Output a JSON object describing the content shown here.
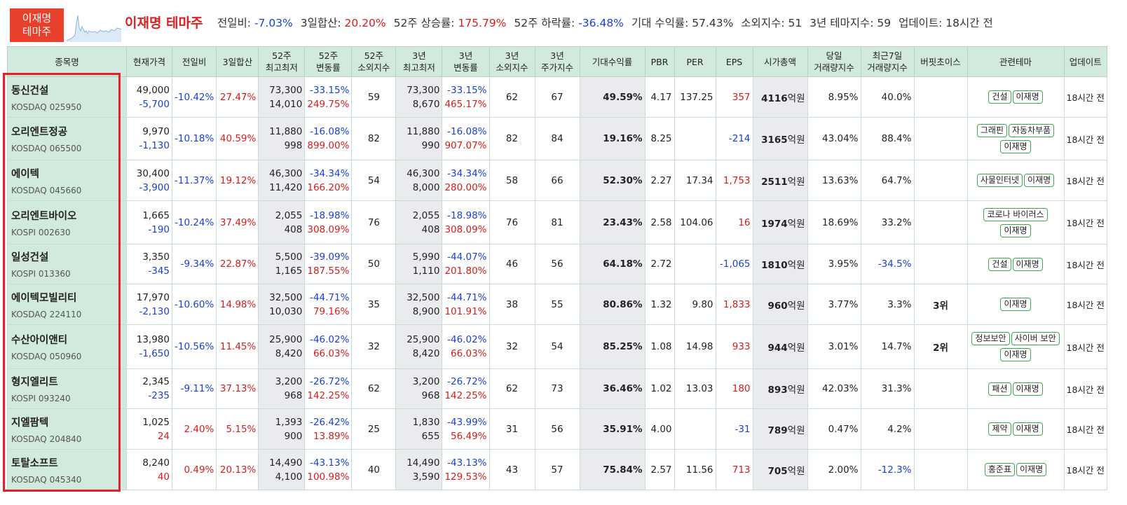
{
  "header": {
    "badge_line1": "이재명",
    "badge_line2": "테마주",
    "theme_name": "이재명 테마주",
    "stats": {
      "prev_day_label": "전일비:",
      "prev_day_value": "-7.03%",
      "sum3_label": "3일합산:",
      "sum3_value": "20.20%",
      "w52_up_label": "52주 상승률:",
      "w52_up_value": "175.79%",
      "w52_down_label": "52주 하락률:",
      "w52_down_value": "-36.48%",
      "expected_label": "기대 수익률:",
      "expected_value": "57.43%",
      "neglect_label": "소외지수:",
      "neglect_value": "51",
      "theme3_label": "3년 테마지수:",
      "theme3_value": "59",
      "update_label": "업데이트:",
      "update_value": "18시간 전"
    }
  },
  "columns": {
    "name": "종목명",
    "price": "현재가격",
    "prev": "전일비",
    "sum3": "3일합산",
    "w52_hl_1": "52주",
    "w52_hl_2": "최고최저",
    "w52_chg_1": "52주",
    "w52_chg_2": "변동률",
    "w52_neg_1": "52주",
    "w52_neg_2": "소외지수",
    "y3_hl_1": "3년",
    "y3_hl_2": "최고최저",
    "y3_chg_1": "3년",
    "y3_chg_2": "변동률",
    "y3_neg_1": "3년",
    "y3_neg_2": "소외지수",
    "y3_idx_1": "3년",
    "y3_idx_2": "주가지수",
    "expected": "기대수익률",
    "pbr": "PBR",
    "per": "PER",
    "eps": "EPS",
    "mcap": "시가총액",
    "vol_day_1": "당일",
    "vol_day_2": "거래량지수",
    "vol_7_1": "최근7일",
    "vol_7_2": "거래량지수",
    "buffett": "버핏초이스",
    "themes": "관련테마",
    "update": "업데이트"
  },
  "rows": [
    {
      "name": "동신건설",
      "code": "KOSDAQ 025950",
      "price": "49,000",
      "change": "-5,700",
      "prev": "-10.42%",
      "sum3": "27.47%",
      "w52_high": "73,300",
      "w52_low": "14,010",
      "w52_chg_down": "-33.15%",
      "w52_chg_up": "249.75%",
      "w52_neg": "59",
      "y3_high": "73,300",
      "y3_low": "8,670",
      "y3_chg_down": "-33.15%",
      "y3_chg_up": "465.17%",
      "y3_neg": "62",
      "y3_idx": "67",
      "expected": "49.59%",
      "pbr": "4.17",
      "per": "137.25",
      "eps": "357",
      "mcap_num": "4116",
      "mcap_unit": "억원",
      "vol_day": "8.95%",
      "vol_7": "40.0%",
      "buffett": "",
      "themes": [
        "건설",
        "이재명"
      ],
      "update": "18시간 전"
    },
    {
      "name": "오리엔트정공",
      "code": "KOSDAQ 065500",
      "price": "9,970",
      "change": "-1,130",
      "prev": "-10.18%",
      "sum3": "40.59%",
      "w52_high": "11,880",
      "w52_low": "998",
      "w52_chg_down": "-16.08%",
      "w52_chg_up": "899.00%",
      "w52_neg": "82",
      "y3_high": "11,880",
      "y3_low": "990",
      "y3_chg_down": "-16.08%",
      "y3_chg_up": "907.07%",
      "y3_neg": "82",
      "y3_idx": "84",
      "expected": "19.16%",
      "pbr": "8.25",
      "per": "",
      "eps": "-214",
      "mcap_num": "3165",
      "mcap_unit": "억원",
      "vol_day": "43.04%",
      "vol_7": "88.4%",
      "buffett": "",
      "themes": [
        "그래핀",
        "자동차부품",
        "이재명"
      ],
      "update": "18시간 전"
    },
    {
      "name": "에이텍",
      "code": "KOSDAQ 045660",
      "price": "30,400",
      "change": "-3,900",
      "prev": "-11.37%",
      "sum3": "19.12%",
      "w52_high": "46,300",
      "w52_low": "11,420",
      "w52_chg_down": "-34.34%",
      "w52_chg_up": "166.20%",
      "w52_neg": "54",
      "y3_high": "46,300",
      "y3_low": "8,000",
      "y3_chg_down": "-34.34%",
      "y3_chg_up": "280.00%",
      "y3_neg": "58",
      "y3_idx": "66",
      "expected": "52.30%",
      "pbr": "2.27",
      "per": "17.34",
      "eps": "1,753",
      "mcap_num": "2511",
      "mcap_unit": "억원",
      "vol_day": "13.63%",
      "vol_7": "64.7%",
      "buffett": "",
      "themes": [
        "사물인터넷",
        "이재명"
      ],
      "update": "18시간 전"
    },
    {
      "name": "오리엔트바이오",
      "code": "KOSPI 002630",
      "price": "1,665",
      "change": "-190",
      "prev": "-10.24%",
      "sum3": "37.49%",
      "w52_high": "2,055",
      "w52_low": "408",
      "w52_chg_down": "-18.98%",
      "w52_chg_up": "308.09%",
      "w52_neg": "76",
      "y3_high": "2,055",
      "y3_low": "408",
      "y3_chg_down": "-18.98%",
      "y3_chg_up": "308.09%",
      "y3_neg": "76",
      "y3_idx": "81",
      "expected": "23.43%",
      "pbr": "2.58",
      "per": "104.06",
      "eps": "16",
      "mcap_num": "1974",
      "mcap_unit": "억원",
      "vol_day": "18.69%",
      "vol_7": "33.2%",
      "buffett": "",
      "themes": [
        "코로나 바이러스",
        "이재명"
      ],
      "update": "18시간 전"
    },
    {
      "name": "일성건설",
      "code": "KOSPI 013360",
      "price": "3,350",
      "change": "-345",
      "prev": "-9.34%",
      "sum3": "22.87%",
      "w52_high": "5,500",
      "w52_low": "1,165",
      "w52_chg_down": "-39.09%",
      "w52_chg_up": "187.55%",
      "w52_neg": "50",
      "y3_high": "5,990",
      "y3_low": "1,110",
      "y3_chg_down": "-44.07%",
      "y3_chg_up": "201.80%",
      "y3_neg": "46",
      "y3_idx": "56",
      "expected": "64.18%",
      "pbr": "2.72",
      "per": "",
      "eps": "-1,065",
      "mcap_num": "1810",
      "mcap_unit": "억원",
      "vol_day": "3.95%",
      "vol_7": "-34.5%",
      "buffett": "",
      "themes": [
        "건설",
        "이재명"
      ],
      "update": "18시간 전"
    },
    {
      "name": "에이텍모빌리티",
      "code": "KOSDAQ 224110",
      "price": "17,970",
      "change": "-2,130",
      "prev": "-10.60%",
      "sum3": "14.98%",
      "w52_high": "32,500",
      "w52_low": "10,030",
      "w52_chg_down": "-44.71%",
      "w52_chg_up": "79.16%",
      "w52_neg": "35",
      "y3_high": "32,500",
      "y3_low": "8,900",
      "y3_chg_down": "-44.71%",
      "y3_chg_up": "101.91%",
      "y3_neg": "38",
      "y3_idx": "55",
      "expected": "80.86%",
      "pbr": "1.32",
      "per": "9.80",
      "eps": "1,833",
      "mcap_num": "960",
      "mcap_unit": "억원",
      "vol_day": "3.77%",
      "vol_7": "3.3%",
      "buffett": "3위",
      "themes": [
        "이재명"
      ],
      "update": "18시간 전"
    },
    {
      "name": "수산아이앤티",
      "code": "KOSDAQ 050960",
      "price": "13,980",
      "change": "-1,650",
      "prev": "-10.56%",
      "sum3": "11.45%",
      "w52_high": "25,900",
      "w52_low": "8,420",
      "w52_chg_down": "-46.02%",
      "w52_chg_up": "66.03%",
      "w52_neg": "32",
      "y3_high": "25,900",
      "y3_low": "8,420",
      "y3_chg_down": "-46.02%",
      "y3_chg_up": "66.03%",
      "y3_neg": "32",
      "y3_idx": "54",
      "expected": "85.25%",
      "pbr": "1.08",
      "per": "14.98",
      "eps": "933",
      "mcap_num": "944",
      "mcap_unit": "억원",
      "vol_day": "3.01%",
      "vol_7": "14.7%",
      "buffett": "2위",
      "themes": [
        "정보보안",
        "사이버 보안",
        "이재명"
      ],
      "update": "18시간 전"
    },
    {
      "name": "형지엘리트",
      "code": "KOSPI 093240",
      "price": "2,345",
      "change": "-235",
      "prev": "-9.11%",
      "sum3": "37.13%",
      "w52_high": "3,200",
      "w52_low": "968",
      "w52_chg_down": "-26.72%",
      "w52_chg_up": "142.25%",
      "w52_neg": "62",
      "y3_high": "3,200",
      "y3_low": "968",
      "y3_chg_down": "-26.72%",
      "y3_chg_up": "142.25%",
      "y3_neg": "62",
      "y3_idx": "73",
      "expected": "36.46%",
      "pbr": "1.02",
      "per": "13.03",
      "eps": "180",
      "mcap_num": "893",
      "mcap_unit": "억원",
      "vol_day": "42.03%",
      "vol_7": "31.3%",
      "buffett": "",
      "themes": [
        "패션",
        "이재명"
      ],
      "update": "18시간 전"
    },
    {
      "name": "지엘팜텍",
      "code": "KOSDAQ 204840",
      "price": "1,025",
      "change": "24",
      "prev": "2.40%",
      "sum3": "5.15%",
      "w52_high": "1,393",
      "w52_low": "900",
      "w52_chg_down": "-26.42%",
      "w52_chg_up": "13.89%",
      "w52_neg": "25",
      "y3_high": "1,830",
      "y3_low": "655",
      "y3_chg_down": "-43.99%",
      "y3_chg_up": "56.49%",
      "y3_neg": "31",
      "y3_idx": "56",
      "expected": "35.91%",
      "pbr": "4.00",
      "per": "",
      "eps": "-31",
      "mcap_num": "789",
      "mcap_unit": "억원",
      "vol_day": "0.47%",
      "vol_7": "4.2%",
      "buffett": "",
      "themes": [
        "제약",
        "이재명"
      ],
      "update": "18시간 전"
    },
    {
      "name": "토탈소프트",
      "code": "KOSDAQ 045340",
      "price": "8,240",
      "change": "40",
      "prev": "0.49%",
      "sum3": "20.13%",
      "w52_high": "14,490",
      "w52_low": "4,100",
      "w52_chg_down": "-43.13%",
      "w52_chg_up": "100.98%",
      "w52_neg": "40",
      "y3_high": "14,490",
      "y3_low": "3,590",
      "y3_chg_down": "-43.13%",
      "y3_chg_up": "129.53%",
      "y3_neg": "43",
      "y3_idx": "57",
      "expected": "75.84%",
      "pbr": "2.57",
      "per": "11.56",
      "eps": "713",
      "mcap_num": "705",
      "mcap_unit": "억원",
      "vol_day": "2.00%",
      "vol_7": "-12.3%",
      "buffett": "",
      "themes": [
        "홍준표",
        "이재명"
      ],
      "update": "18시간 전"
    }
  ],
  "colors": {
    "negative": "#1a3fd6",
    "positive": "#d81c1c",
    "accent": "#e8412b",
    "header_bg": "#d2e9de",
    "highlight_box": "#e5202b"
  }
}
